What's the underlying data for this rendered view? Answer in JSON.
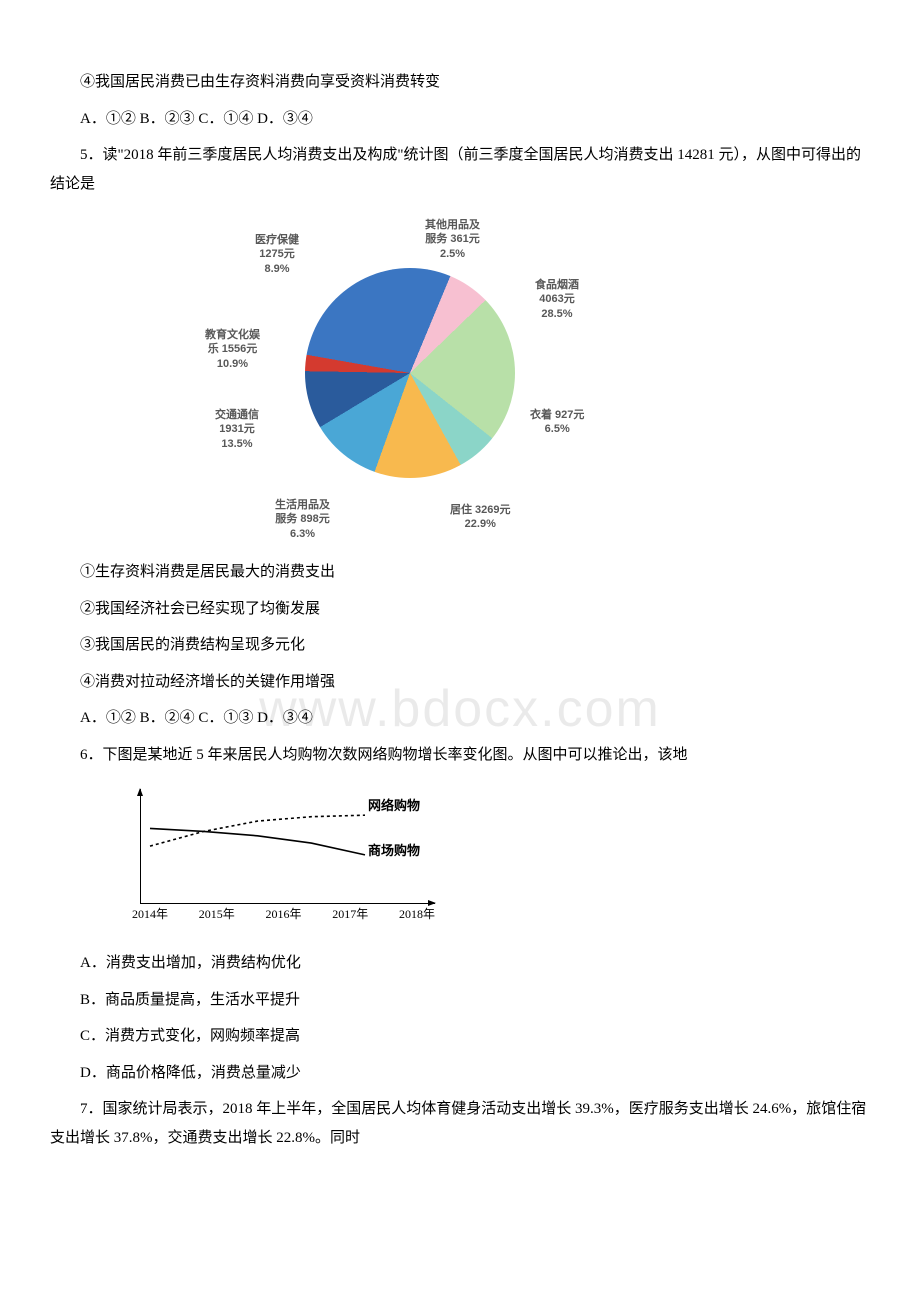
{
  "q4": {
    "opt4": "④我国居民消费已由生存资料消费向享受资料消费转变",
    "choices": "A．①② B．②③ C．①④ D．③④"
  },
  "q5": {
    "stem": "5．读\"2018 年前三季度居民人均消费支出及构成\"统计图（前三季度全国居民人均消费支出 14281 元），从图中可得出的结论是",
    "opt1": "①生存资料消费是居民最大的消费支出",
    "opt2": "②我国经济社会已经实现了均衡发展",
    "opt3": "③我国居民的消费结构呈现多元化",
    "opt4": "④消费对拉动经济增长的关键作用增强",
    "choices": "A．①② B．②④ C．①③ D．③④"
  },
  "q6": {
    "stem": "6．下图是某地近 5 年来居民人均购物次数网络购物增长率变化图。从图中可以推论出，该地",
    "optA": "A．消费支出增加，消费结构优化",
    "optB": "B．商品质量提高，生活水平提升",
    "optC": "C．消费方式变化，网购频率提高",
    "optD": "D．商品价格降低，消费总量减少"
  },
  "q7": {
    "stem": "7．国家统计局表示，2018 年上半年，全国居民人均体育健身活动支出增长 39.3%，医疗服务支出增长 24.6%，旅馆住宿支出增长 37.8%，交通费支出增长 22.8%。同时"
  },
  "pie": {
    "type": "pie",
    "total": 14281,
    "slices": [
      {
        "name": "食品烟酒",
        "value": 4063,
        "pct": 28.5,
        "color": "#3b76c2"
      },
      {
        "name": "衣着",
        "value": 927,
        "pct": 6.5,
        "color": "#f7c0d1"
      },
      {
        "name": "居住",
        "value": 3269,
        "pct": 22.9,
        "color": "#b8e0a8"
      },
      {
        "name": "生活用品及服务",
        "value": 898,
        "pct": 6.3,
        "color": "#8bd5c8"
      },
      {
        "name": "交通通信",
        "value": 1931,
        "pct": 13.5,
        "color": "#f8b94e"
      },
      {
        "name": "教育文化娱乐",
        "value": 1556,
        "pct": 10.9,
        "color": "#4aa7d6"
      },
      {
        "name": "医疗保健",
        "value": 1275,
        "pct": 8.9,
        "color": "#2a5b9c"
      },
      {
        "name": "其他用品及服务",
        "value": 361,
        "pct": 2.5,
        "color": "#d43a2f"
      }
    ],
    "label_fontsize": 11,
    "label_color": "#585858",
    "background": "#ffffff",
    "labels": {
      "food": {
        "l1": "食品烟酒",
        "l2": "4063元",
        "l3": "28.5%"
      },
      "cloth": {
        "l1": "衣着 927元",
        "l2": "6.5%"
      },
      "house": {
        "l1": "居住 3269元",
        "l2": "22.9%"
      },
      "life": {
        "l1": "生活用品及",
        "l2": "服务 898元",
        "l3": "6.3%"
      },
      "trans": {
        "l1": "交通通信",
        "l2": "1931元",
        "l3": "13.5%"
      },
      "edu": {
        "l1": "教育文化娱",
        "l2": "乐 1556元",
        "l3": "10.9%"
      },
      "med": {
        "l1": "医疗保健",
        "l2": "1275元",
        "l3": "8.9%"
      },
      "other": {
        "l1": "其他用品及",
        "l2": "服务 361元",
        "l3": "2.5%"
      }
    }
  },
  "linechart": {
    "type": "line",
    "x_categories": [
      "2014年",
      "2015年",
      "2016年",
      "2017年",
      "2018年"
    ],
    "series": [
      {
        "name": "网络购物",
        "style": "dashed",
        "color": "#000000",
        "values": [
          38,
          48,
          55,
          58,
          59
        ]
      },
      {
        "name": "商场购物",
        "style": "solid",
        "color": "#000000",
        "values": [
          50,
          48,
          45,
          40,
          32
        ]
      }
    ],
    "series1_label": "网络购物",
    "series2_label": "商场购物",
    "x0": "2014年",
    "x1": "2015年",
    "x2": "2016年",
    "x3": "2017年",
    "x4": "2018年",
    "axis_color": "#000000",
    "background": "#ffffff"
  },
  "watermark": "www.bdocx.com"
}
